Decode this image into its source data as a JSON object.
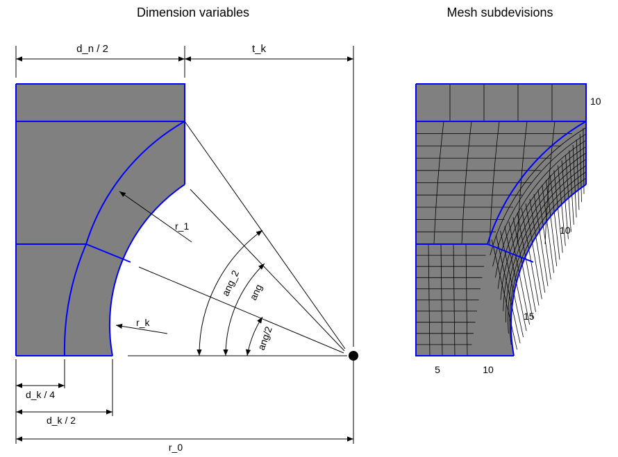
{
  "titles": {
    "left": "Dimension variables",
    "right": "Mesh subdevisions"
  },
  "labels": {
    "dn_half": "d_n / 2",
    "tk": "t_k",
    "r1": "r_1",
    "rk": "r_k",
    "ang2": "ang_2",
    "ang": "ang",
    "ang_half": "ang/2",
    "dk_quarter": "d_k / 4",
    "dk_half": "d_k / 2",
    "r0": "r_0"
  },
  "mesh_counts": {
    "top": "10",
    "arc_outer": "10",
    "arc_inner": "15",
    "bottom_left": "5",
    "bottom_right": "10"
  },
  "colors": {
    "fill": "#808080",
    "edge": "#0000ff",
    "ink": "#000000"
  }
}
